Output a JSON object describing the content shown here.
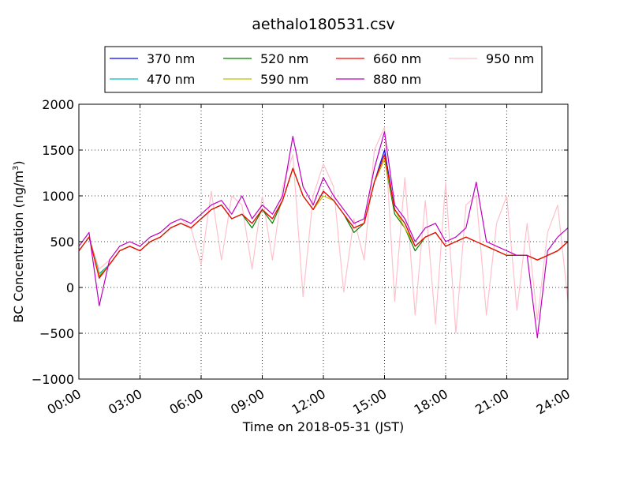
{
  "chart_data": {
    "type": "line",
    "title": "aethalo180531.csv",
    "xlabel": "Time on 2018-05-31 (JST)",
    "ylabel_main": "BC Concentration (ng/m",
    "ylabel_sup": "3",
    "ylabel_end": ")",
    "xlim": [
      "00:00",
      "24:00"
    ],
    "ylim": [
      -1000,
      2000
    ],
    "grid": true,
    "legend_position": "top",
    "x_ticks": [
      "00:00",
      "03:00",
      "06:00",
      "09:00",
      "12:00",
      "15:00",
      "18:00",
      "21:00",
      "24:00"
    ],
    "y_ticks": [
      "−1000",
      "−500",
      "0",
      "500",
      "1000",
      "1500",
      "2000"
    ],
    "x": [
      "00:00",
      "00:30",
      "01:00",
      "01:30",
      "02:00",
      "02:30",
      "03:00",
      "03:30",
      "04:00",
      "04:30",
      "05:00",
      "05:30",
      "06:00",
      "06:30",
      "07:00",
      "07:30",
      "08:00",
      "08:30",
      "09:00",
      "09:30",
      "10:00",
      "10:30",
      "11:00",
      "11:30",
      "12:00",
      "12:30",
      "13:00",
      "13:30",
      "14:00",
      "14:30",
      "15:00",
      "15:30",
      "16:00",
      "16:30",
      "17:00",
      "17:30",
      "18:00",
      "18:30",
      "19:00",
      "19:30",
      "20:00",
      "20:30",
      "21:00",
      "21:30",
      "22:00",
      "22:30",
      "23:00",
      "23:30",
      "24:00"
    ],
    "series": [
      {
        "name": "370 nm",
        "color": "#0000ff",
        "values": [
          400,
          550,
          150,
          250,
          400,
          450,
          400,
          500,
          550,
          650,
          700,
          650,
          750,
          850,
          900,
          750,
          800,
          700,
          850,
          750,
          950,
          1300,
          1000,
          850,
          1050,
          950,
          800,
          650,
          700,
          1150,
          1500,
          850,
          700,
          450,
          550,
          600,
          450,
          500,
          550,
          500,
          450,
          400,
          350,
          350,
          350,
          300,
          350,
          400,
          500
        ]
      },
      {
        "name": "470 nm",
        "color": "#00bfbf",
        "values": [
          400,
          550,
          150,
          250,
          400,
          450,
          400,
          500,
          550,
          650,
          700,
          650,
          750,
          850,
          900,
          750,
          800,
          700,
          850,
          750,
          950,
          1300,
          1000,
          850,
          1050,
          950,
          800,
          650,
          700,
          1150,
          1450,
          850,
          700,
          450,
          550,
          600,
          450,
          500,
          550,
          500,
          450,
          400,
          350,
          350,
          350,
          300,
          350,
          400,
          500
        ]
      },
      {
        "name": "520 nm",
        "color": "#008000",
        "values": [
          400,
          550,
          120,
          250,
          400,
          450,
          400,
          500,
          550,
          650,
          700,
          650,
          750,
          850,
          900,
          750,
          800,
          650,
          850,
          700,
          950,
          1300,
          1000,
          850,
          1050,
          950,
          800,
          600,
          700,
          1150,
          1400,
          800,
          650,
          400,
          550,
          600,
          450,
          500,
          550,
          500,
          450,
          400,
          350,
          350,
          350,
          300,
          350,
          400,
          500
        ]
      },
      {
        "name": "590 nm",
        "color": "#bfbf00",
        "values": [
          400,
          550,
          130,
          250,
          400,
          450,
          400,
          500,
          550,
          650,
          700,
          650,
          750,
          850,
          900,
          750,
          800,
          700,
          850,
          750,
          950,
          1300,
          1000,
          850,
          1000,
          950,
          800,
          650,
          700,
          1150,
          1400,
          850,
          650,
          450,
          550,
          600,
          450,
          500,
          550,
          500,
          450,
          400,
          350,
          350,
          350,
          300,
          350,
          400,
          500
        ]
      },
      {
        "name": "660 nm",
        "color": "#ff0000",
        "values": [
          400,
          550,
          100,
          250,
          400,
          450,
          400,
          500,
          550,
          650,
          700,
          650,
          750,
          850,
          900,
          750,
          800,
          700,
          850,
          750,
          950,
          1300,
          1000,
          850,
          1050,
          950,
          800,
          650,
          700,
          1150,
          1450,
          850,
          700,
          450,
          550,
          600,
          450,
          500,
          550,
          500,
          450,
          400,
          350,
          350,
          350,
          300,
          350,
          400,
          500
        ]
      },
      {
        "name": "880 nm",
        "color": "#bf00bf",
        "values": [
          450,
          600,
          -200,
          300,
          450,
          500,
          450,
          550,
          600,
          700,
          750,
          700,
          800,
          900,
          950,
          800,
          1000,
          750,
          900,
          800,
          1000,
          1650,
          1100,
          900,
          1200,
          1000,
          850,
          700,
          750,
          1300,
          1700,
          900,
          750,
          500,
          650,
          700,
          500,
          550,
          650,
          1150,
          500,
          450,
          400,
          350,
          350,
          -550,
          400,
          550,
          650
        ]
      },
      {
        "name": "950 nm",
        "color": "#ffc0cb",
        "values": [
          400,
          550,
          200,
          300,
          450,
          500,
          450,
          550,
          600,
          700,
          750,
          650,
          250,
          1050,
          300,
          1000,
          900,
          200,
          1000,
          300,
          1100,
          1450,
          -100,
          1000,
          1350,
          1100,
          -50,
          750,
          300,
          1500,
          1750,
          -150,
          1200,
          -300,
          950,
          -400,
          1150,
          -500,
          900,
          1000,
          -300,
          700,
          1000,
          -250,
          700,
          -350,
          600,
          900,
          -150
        ]
      }
    ]
  }
}
